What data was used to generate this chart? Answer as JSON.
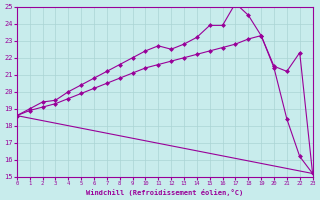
{
  "xlabel": "Windchill (Refroidissement éolien,°C)",
  "xlim": [
    0,
    23
  ],
  "ylim": [
    15,
    25
  ],
  "yticks": [
    15,
    16,
    17,
    18,
    19,
    20,
    21,
    22,
    23,
    24,
    25
  ],
  "xticks": [
    0,
    1,
    2,
    3,
    4,
    5,
    6,
    7,
    8,
    9,
    10,
    11,
    12,
    13,
    14,
    15,
    16,
    17,
    18,
    19,
    20,
    21,
    22,
    23
  ],
  "bg_color": "#c8ecec",
  "line_color": "#990099",
  "grid_color": "#b0d8d8",
  "line_color2": "#990099",
  "line1_x": [
    0,
    1,
    2,
    3,
    4,
    5,
    6,
    7,
    8,
    9,
    10,
    11,
    12,
    13,
    14,
    15,
    16,
    17,
    18,
    19,
    20,
    21,
    22,
    23
  ],
  "line1_y": [
    18.6,
    19.0,
    19.4,
    19.5,
    20.0,
    20.4,
    20.8,
    21.2,
    21.6,
    22.0,
    22.4,
    22.7,
    22.5,
    22.8,
    23.2,
    23.9,
    23.9,
    25.2,
    24.5,
    23.3,
    21.4,
    18.4,
    16.2,
    15.2
  ],
  "line2_x": [
    0,
    1,
    2,
    3,
    4,
    5,
    6,
    7,
    8,
    9,
    10,
    11,
    12,
    13,
    14,
    15,
    16,
    17,
    18,
    19,
    20,
    21,
    22,
    23
  ],
  "line2_y": [
    18.6,
    18.9,
    19.1,
    19.3,
    19.6,
    19.9,
    20.2,
    20.5,
    20.8,
    21.1,
    21.4,
    21.6,
    21.8,
    22.0,
    22.2,
    22.4,
    22.6,
    22.8,
    23.1,
    23.3,
    21.5,
    21.2,
    22.3,
    15.2
  ],
  "line3_x": [
    0,
    23
  ],
  "line3_y": [
    18.6,
    15.2
  ]
}
